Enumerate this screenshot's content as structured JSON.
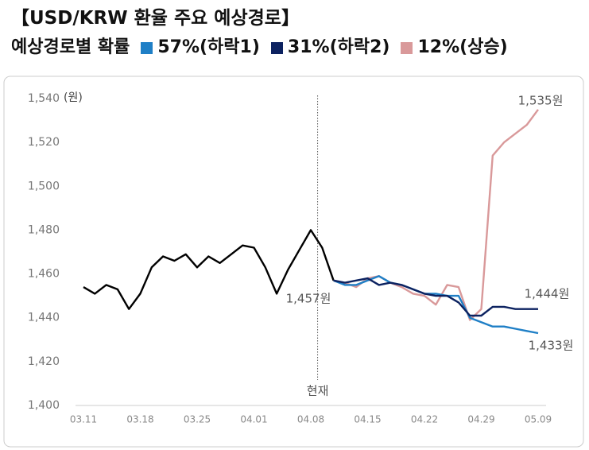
{
  "chart_data": {
    "type": "line",
    "title": "【USD/KRW 환율 주요 예상경로】",
    "legend_title": "예상경로별 확률",
    "y_unit": "(원)",
    "categories": [
      "03.11",
      null,
      null,
      null,
      null,
      "03.18",
      null,
      null,
      null,
      null,
      "03.25",
      null,
      null,
      null,
      null,
      "04.01",
      null,
      null,
      null,
      null,
      "04.08",
      null,
      null,
      null,
      null,
      "04.15",
      null,
      null,
      null,
      null,
      "04.22",
      null,
      null,
      null,
      null,
      "04.29",
      null,
      null,
      null,
      null,
      "05.09"
    ],
    "series": [
      {
        "color": "#000000",
        "values": [
          1454,
          1451,
          1455,
          1453,
          1444,
          1451,
          1463,
          1468,
          1466,
          1469,
          1463,
          1468,
          1465,
          1469,
          1473,
          1472,
          1463,
          1451,
          1462,
          1471,
          1480,
          1472,
          1457,
          null,
          null,
          null,
          null,
          null,
          null,
          null,
          null,
          null,
          null,
          null,
          null,
          null,
          null,
          null,
          null,
          null,
          null
        ]
      },
      {
        "name": "57%(하락1)",
        "color": "#1f7fc6",
        "values": [
          null,
          null,
          null,
          null,
          null,
          null,
          null,
          null,
          null,
          null,
          null,
          null,
          null,
          null,
          null,
          null,
          null,
          null,
          null,
          null,
          null,
          null,
          1457,
          1455,
          1455,
          1457,
          1459,
          1456,
          1455,
          1453,
          1451,
          1451,
          1450,
          1450,
          1440,
          1438,
          1436,
          1436,
          1435,
          1434,
          1433
        ]
      },
      {
        "name": "31%(하락2)",
        "color": "#0c2260",
        "values": [
          null,
          null,
          null,
          null,
          null,
          null,
          null,
          null,
          null,
          null,
          null,
          null,
          null,
          null,
          null,
          null,
          null,
          null,
          null,
          null,
          null,
          null,
          1457,
          1456,
          1457,
          1458,
          1455,
          1456,
          1455,
          1453,
          1451,
          1450,
          1450,
          1447,
          1441,
          1441,
          1445,
          1445,
          1444,
          1444,
          1444
        ]
      },
      {
        "name": "12%(상승)",
        "color": "#d9999a",
        "values": [
          null,
          null,
          null,
          null,
          null,
          null,
          null,
          null,
          null,
          null,
          null,
          null,
          null,
          null,
          null,
          null,
          null,
          null,
          null,
          null,
          null,
          null,
          1457,
          1456,
          1454,
          1458,
          1459,
          1456,
          1454,
          1451,
          1450,
          1446,
          1455,
          1454,
          1439,
          1444,
          1514,
          1520,
          1524,
          1528,
          1535
        ]
      }
    ],
    "ylim": [
      1400,
      1540
    ],
    "yticks": [
      {
        "value": 1400,
        "label": "1,400"
      },
      {
        "value": 1420,
        "label": "1,420"
      },
      {
        "value": 1440,
        "label": "1,440"
      },
      {
        "value": 1460,
        "label": "1,460"
      },
      {
        "value": 1480,
        "label": "1,480"
      },
      {
        "value": 1500,
        "label": "1,500"
      },
      {
        "value": 1520,
        "label": "1,520"
      },
      {
        "value": 1540,
        "label": "1,540"
      }
    ],
    "annotations": [
      "1,457원",
      "1,535원",
      "1,444원",
      "1,433원",
      "현재"
    ],
    "grid": false
  }
}
